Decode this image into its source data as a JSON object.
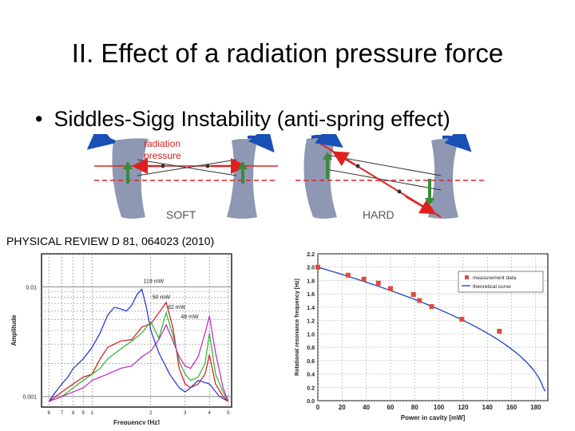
{
  "slide": {
    "title": "II. Effect of a radiation pressure force",
    "bullet": "Siddles-Sigg Instability (anti-spring effect)",
    "citation": "PHYSICAL REVIEW D 81, 064023 (2010)"
  },
  "diagram": {
    "radiation_label_1": "radiation",
    "radiation_label_2": "pressure",
    "soft_label": "SOFT",
    "hard_label": "HARD"
  },
  "chart_data": [
    {
      "type": "line",
      "xlabel": "Frequency [Hz]",
      "ylabel": "Amplitude",
      "xscale": "log",
      "yscale": "log",
      "xlim": [
        0.55,
        5.2
      ],
      "ylim": [
        0.0008,
        0.02
      ],
      "y_tick_labels": [
        "0.01",
        "0.001"
      ],
      "x_tick_labels": [
        "6",
        "7",
        "8",
        "9",
        "1",
        "2",
        "3",
        "4",
        "5"
      ],
      "series": [
        {
          "name": "119 mW",
          "color": "#1a2fd1",
          "x": [
            0.6,
            0.65,
            0.7,
            0.75,
            0.8,
            0.9,
            1.0,
            1.1,
            1.2,
            1.3,
            1.4,
            1.5,
            1.6,
            1.7,
            1.8,
            1.9,
            2.0,
            2.2,
            2.5,
            2.8,
            3.0,
            3.2,
            3.5,
            4.0,
            4.5,
            5.0
          ],
          "y": [
            0.0009,
            0.0011,
            0.0013,
            0.0015,
            0.0018,
            0.0022,
            0.0028,
            0.0038,
            0.0055,
            0.0065,
            0.0063,
            0.006,
            0.0068,
            0.0085,
            0.0095,
            0.0065,
            0.004,
            0.0025,
            0.0016,
            0.0012,
            0.0011,
            0.0012,
            0.0014,
            0.0013,
            0.001,
            0.0009
          ]
        },
        {
          "name": "50 mW",
          "color": "#d11a1a",
          "x": [
            0.6,
            0.7,
            0.8,
            0.9,
            1.0,
            1.1,
            1.2,
            1.4,
            1.6,
            1.8,
            2.0,
            2.2,
            2.4,
            2.6,
            2.8,
            3.0,
            3.2,
            3.5,
            3.8,
            4.0,
            4.3,
            4.7,
            5.0
          ],
          "y": [
            0.0009,
            0.0011,
            0.0013,
            0.0015,
            0.0016,
            0.0022,
            0.0028,
            0.0032,
            0.0033,
            0.0043,
            0.0046,
            0.0058,
            0.0072,
            0.0042,
            0.0018,
            0.0013,
            0.0012,
            0.0013,
            0.0016,
            0.0024,
            0.0013,
            0.001,
            0.0009
          ]
        },
        {
          "name": "82 mW",
          "color": "#2bb52b",
          "x": [
            0.6,
            0.7,
            0.8,
            0.9,
            1.0,
            1.1,
            1.2,
            1.4,
            1.6,
            1.8,
            2.0,
            2.2,
            2.4,
            2.6,
            2.8,
            3.0,
            3.2,
            3.5,
            3.8,
            4.0,
            4.3,
            4.7,
            5.0
          ],
          "y": [
            0.0009,
            0.001,
            0.0012,
            0.0014,
            0.0016,
            0.0018,
            0.0022,
            0.0027,
            0.0032,
            0.0038,
            0.0048,
            0.0034,
            0.0058,
            0.0036,
            0.0021,
            0.0016,
            0.0014,
            0.0015,
            0.002,
            0.0038,
            0.0016,
            0.0011,
            0.0009
          ]
        },
        {
          "name": "48 mW",
          "color": "#c51ec5",
          "x": [
            0.6,
            0.7,
            0.8,
            0.9,
            1.0,
            1.2,
            1.4,
            1.6,
            1.8,
            2.0,
            2.2,
            2.4,
            2.6,
            2.8,
            3.0,
            3.2,
            3.5,
            3.8,
            4.0,
            4.3,
            4.7,
            5.0
          ],
          "y": [
            0.0009,
            0.001,
            0.0011,
            0.0012,
            0.0014,
            0.0016,
            0.0018,
            0.0019,
            0.0023,
            0.0026,
            0.0033,
            0.0045,
            0.0032,
            0.0023,
            0.0019,
            0.0018,
            0.0023,
            0.0038,
            0.0054,
            0.0025,
            0.0012,
            0.0009
          ]
        }
      ]
    },
    {
      "type": "scatter",
      "xlabel": "Power in cavity [mW]",
      "ylabel": "Rotational resonance frequency [Hz]",
      "xlim": [
        0,
        190
      ],
      "ylim": [
        0,
        2.2
      ],
      "x_ticks": [
        0,
        20,
        40,
        60,
        80,
        100,
        120,
        140,
        160,
        180
      ],
      "y_ticks": [
        0,
        0.2,
        0.4,
        0.6,
        0.8,
        1.0,
        1.2,
        1.4,
        1.6,
        1.8,
        2.0,
        2.2
      ],
      "legend_placement": "top-right",
      "series": [
        {
          "name": "measurement data",
          "color": "#e04a3a",
          "x": [
            0,
            25,
            38,
            50,
            60,
            79,
            84,
            94,
            119,
            150
          ],
          "y": [
            2.0,
            1.88,
            1.82,
            1.76,
            1.68,
            1.59,
            1.5,
            1.41,
            1.22,
            1.04
          ]
        },
        {
          "name": "theoretical curve",
          "color": "#2a4fc0",
          "curve": "2.0*sqrt(1-P/188)"
        }
      ]
    }
  ]
}
